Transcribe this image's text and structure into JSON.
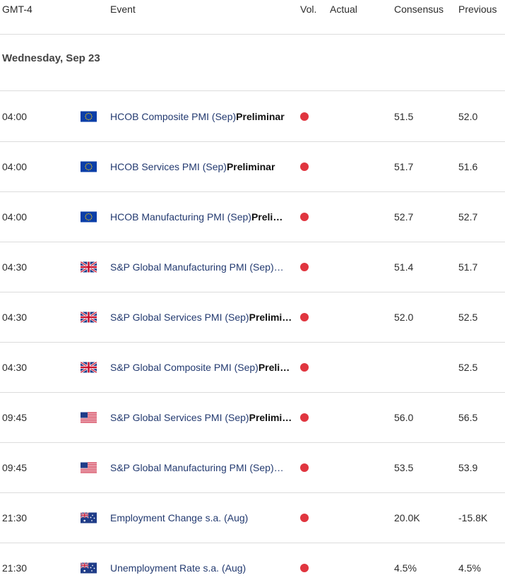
{
  "header": {
    "columns": [
      "GMT-4",
      "Event",
      "Vol.",
      "Actual",
      "Consensus",
      "Previous"
    ]
  },
  "date": "Wednesday, Sep 23",
  "rows": [
    {
      "time": "04:00",
      "event": "HCOB Composite PMI (Sep)",
      "event_bold": "Preliminar",
      "consensus": "51.5",
      "previous": "52.0"
    },
    {
      "time": "04:00",
      "event": "HCOB Services PMI (Sep)",
      "event_bold": "Preliminar",
      "consensus": "51.7",
      "previous": "51.6"
    },
    {
      "time": "04:00",
      "event": "HCOB Manufacturing PMI (Sep)",
      "event_bold": "Preli…",
      "consensus": "52.7",
      "previous": "52.7"
    },
    {
      "time": "04:30",
      "event": "S&P Global Manufacturing PMI (Sep)…",
      "consensus": "51.4",
      "previous": "51.7"
    },
    {
      "time": "04:30",
      "event": "S&P Global Services PMI (Sep)",
      "event_bold": "Prelimi…",
      "consensus": "52.0",
      "previous": "52.5"
    },
    {
      "time": "04:30",
      "event": "S&P Global Composite PMI (Sep)",
      "event_bold": "Preli…",
      "consensus": null,
      "previous": "52.5"
    },
    {
      "time": "09:45",
      "event": "S&P Global Services PMI (Sep)",
      "event_bold": "Prelimi…",
      "consensus": "56.0",
      "previous": "56.5"
    },
    {
      "time": "09:45",
      "event": "S&P Global Manufacturing PMI (Sep)…",
      "consensus": "53.5",
      "previous": "53.9"
    },
    {
      "time": "21:30",
      "event": "Employment Change s.a. (Aug)",
      "consensus": "20.0K",
      "previous": "-15.8K"
    },
    {
      "time": "21:30",
      "event": "Unemployment Rate s.a. (Aug)",
      "consensus": "4.5%",
      "previous": "4.5%"
    }
  ]
}
